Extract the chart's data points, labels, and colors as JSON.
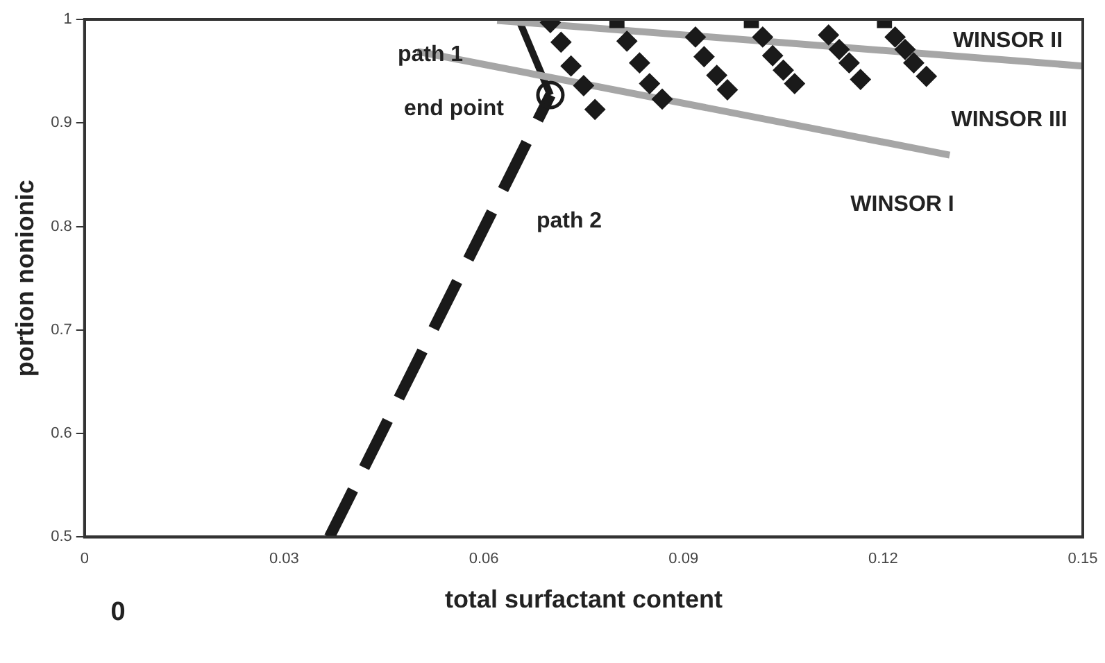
{
  "chart_data": {
    "type": "line",
    "xlabel": "total surfactant content",
    "ylabel": "portion nonionic",
    "xlim": [
      0,
      0.15
    ],
    "xticks": [
      0,
      0.03,
      0.06,
      0.09,
      0.12,
      0.15
    ],
    "ylim": [
      0.5,
      1
    ],
    "yticks": [
      0.5,
      0.6,
      0.7,
      0.8,
      0.9,
      1
    ],
    "grid": false,
    "legend": false,
    "series": [
      {
        "color": "#a6a6a6",
        "line_style": "solid",
        "marker": "none",
        "x": [
          0.05,
          0.13
        ],
        "values": [
          0.969,
          0.869
        ]
      },
      {
        "color": "#a6a6a6",
        "line_style": "solid",
        "marker": "none",
        "x": [
          0.062,
          0.15
        ],
        "values": [
          0.999,
          0.955
        ]
      },
      {
        "color": "#1a1a1a",
        "line_style": "solid",
        "marker": "none",
        "x": [
          0.0653,
          0.07
        ],
        "values": [
          0.999,
          0.927
        ]
      },
      {
        "color": "#1a1a1a",
        "line_style": "dashed",
        "marker": "none",
        "x": [
          0.0368,
          0.07
        ],
        "values": [
          0.5,
          0.927
        ]
      },
      {
        "type": "scatter",
        "color": "#1a1a1a",
        "marker": "diamond",
        "x": [
          0.07,
          0.0716,
          0.0731,
          0.075,
          0.0767,
          0.0815,
          0.0834,
          0.0849,
          0.0868,
          0.0918,
          0.0931,
          0.095,
          0.0966,
          0.1019,
          0.1034,
          0.105,
          0.1067,
          0.1118,
          0.1134,
          0.1149,
          0.1166,
          0.1218,
          0.1233,
          0.1246,
          0.1265
        ],
        "values": [
          0.997,
          0.978,
          0.955,
          0.936,
          0.913,
          0.979,
          0.958,
          0.938,
          0.923,
          0.983,
          0.964,
          0.946,
          0.932,
          0.983,
          0.965,
          0.951,
          0.938,
          0.985,
          0.971,
          0.958,
          0.942,
          0.983,
          0.971,
          0.958,
          0.945
        ]
      },
      {
        "type": "scatter",
        "color": "#1a1a1a",
        "marker": "square",
        "x": [
          0.08,
          0.1002,
          0.1202
        ],
        "values": [
          0.999,
          0.999,
          0.999
        ]
      },
      {
        "type": "scatter",
        "color": "#1a1a1a",
        "marker": "circle",
        "x": [
          0.07
        ],
        "values": [
          0.927
        ]
      }
    ],
    "annotations": [
      "path 1",
      "end point",
      "path 2",
      "WINSOR I",
      "WINSOR II",
      "WINSOR III",
      "0"
    ]
  }
}
